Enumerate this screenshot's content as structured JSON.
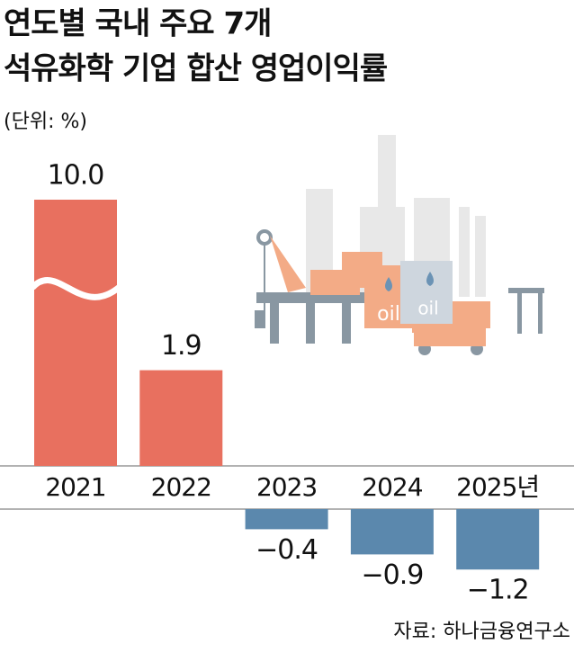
{
  "chart_data": {
    "type": "bar",
    "title": [
      "연도별 국내 주요 7개",
      "석유화학 기업 합산 영업이익률"
    ],
    "subtitle": "(단위: %)",
    "categories": [
      "2021",
      "2022",
      "2023",
      "2024",
      "2025년"
    ],
    "values": [
      10.0,
      1.9,
      -0.4,
      -0.9,
      -1.2
    ],
    "value_labels": [
      "10.0",
      "1.9",
      "−0.4",
      "−0.9",
      "−1.2"
    ],
    "color_positive": "#e8705f",
    "color_negative": "#5b88ad",
    "source": "자료: 하나금융연구소"
  },
  "illustration": {
    "labels": [
      "oil",
      "oil"
    ]
  }
}
